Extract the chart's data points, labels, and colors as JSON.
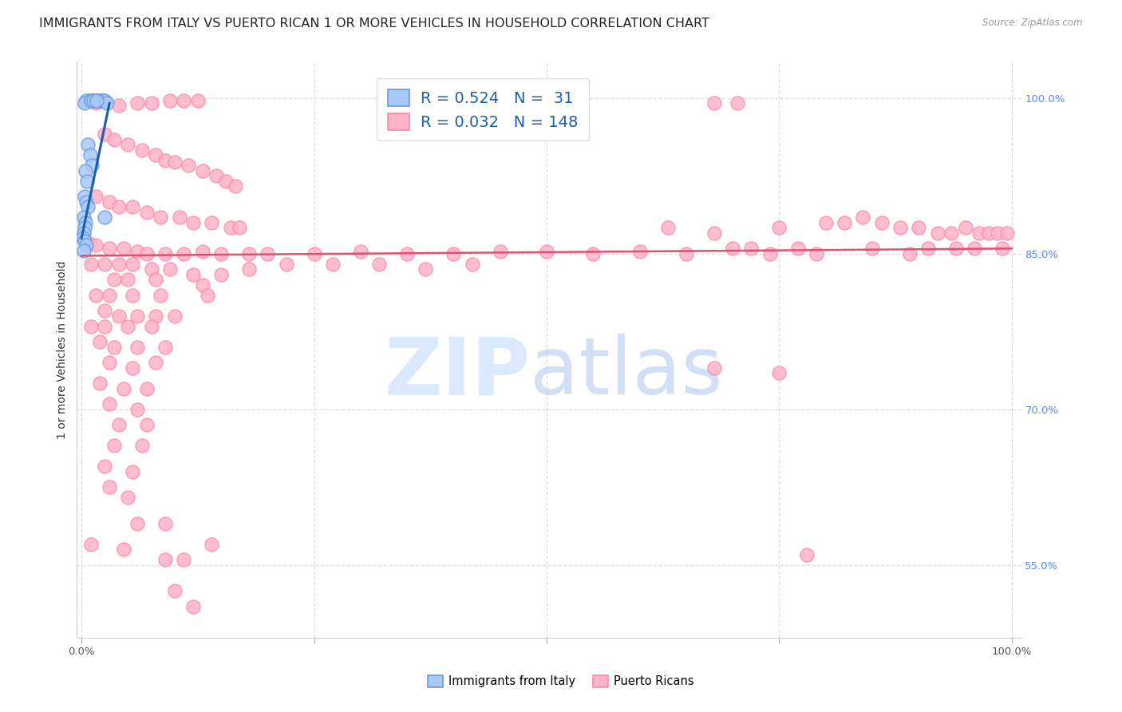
{
  "title": "IMMIGRANTS FROM ITALY VS PUERTO RICAN 1 OR MORE VEHICLES IN HOUSEHOLD CORRELATION CHART",
  "source": "Source: ZipAtlas.com",
  "ylabel": "1 or more Vehicles in Household",
  "watermark_zip": "ZIP",
  "watermark_atlas": "atlas",
  "legend_italy_label": "Immigrants from Italy",
  "legend_pr_label": "Puerto Ricans",
  "italy_R": 0.524,
  "italy_N": 31,
  "pr_R": 0.032,
  "pr_N": 148,
  "right_yticks": [
    55.0,
    70.0,
    85.0,
    100.0
  ],
  "italy_color": "#a8c8f8",
  "pr_color": "#ffb3c8",
  "italy_edge": "#6699dd",
  "pr_edge": "#ff88aa",
  "italy_line_color": "#1a5fa8",
  "pr_line_color": "#e05070",
  "italy_scatter": [
    [
      0.8,
      99.8
    ],
    [
      1.2,
      99.8
    ],
    [
      1.5,
      99.8
    ],
    [
      1.7,
      99.8
    ],
    [
      1.9,
      99.8
    ],
    [
      2.1,
      99.8
    ],
    [
      2.3,
      99.8
    ],
    [
      2.5,
      99.8
    ],
    [
      2.7,
      99.5
    ],
    [
      0.5,
      99.8
    ],
    [
      0.3,
      99.5
    ],
    [
      1.0,
      99.8
    ],
    [
      1.3,
      99.8
    ],
    [
      1.6,
      99.8
    ],
    [
      0.7,
      95.5
    ],
    [
      0.9,
      94.5
    ],
    [
      1.1,
      93.5
    ],
    [
      0.4,
      93.0
    ],
    [
      0.6,
      92.0
    ],
    [
      0.3,
      90.5
    ],
    [
      0.5,
      90.0
    ],
    [
      0.7,
      89.5
    ],
    [
      0.2,
      88.5
    ],
    [
      0.4,
      88.0
    ],
    [
      0.3,
      87.5
    ],
    [
      0.2,
      87.0
    ],
    [
      0.15,
      86.5
    ],
    [
      0.35,
      86.2
    ],
    [
      0.5,
      85.8
    ],
    [
      0.25,
      85.3
    ],
    [
      2.5,
      88.5
    ]
  ],
  "pr_scatter": [
    [
      1.5,
      99.5
    ],
    [
      4.0,
      99.3
    ],
    [
      6.0,
      99.5
    ],
    [
      7.5,
      99.5
    ],
    [
      9.5,
      99.8
    ],
    [
      11.0,
      99.8
    ],
    [
      12.5,
      99.8
    ],
    [
      68.0,
      99.5
    ],
    [
      70.5,
      99.5
    ],
    [
      2.5,
      96.5
    ],
    [
      3.5,
      96.0
    ],
    [
      5.0,
      95.5
    ],
    [
      6.5,
      95.0
    ],
    [
      8.0,
      94.5
    ],
    [
      9.0,
      94.0
    ],
    [
      10.0,
      93.8
    ],
    [
      11.5,
      93.5
    ],
    [
      13.0,
      93.0
    ],
    [
      14.5,
      92.5
    ],
    [
      15.5,
      92.0
    ],
    [
      16.5,
      91.5
    ],
    [
      1.5,
      90.5
    ],
    [
      3.0,
      90.0
    ],
    [
      4.0,
      89.5
    ],
    [
      5.5,
      89.5
    ],
    [
      7.0,
      89.0
    ],
    [
      8.5,
      88.5
    ],
    [
      10.5,
      88.5
    ],
    [
      12.0,
      88.0
    ],
    [
      14.0,
      88.0
    ],
    [
      16.0,
      87.5
    ],
    [
      17.0,
      87.5
    ],
    [
      63.0,
      87.5
    ],
    [
      68.0,
      87.0
    ],
    [
      75.0,
      87.5
    ],
    [
      80.0,
      88.0
    ],
    [
      82.0,
      88.0
    ],
    [
      84.0,
      88.5
    ],
    [
      86.0,
      88.0
    ],
    [
      88.0,
      87.5
    ],
    [
      90.0,
      87.5
    ],
    [
      92.0,
      87.0
    ],
    [
      93.5,
      87.0
    ],
    [
      95.0,
      87.5
    ],
    [
      96.5,
      87.0
    ],
    [
      97.5,
      87.0
    ],
    [
      98.5,
      87.0
    ],
    [
      99.5,
      87.0
    ],
    [
      0.8,
      86.0
    ],
    [
      1.5,
      85.8
    ],
    [
      3.0,
      85.5
    ],
    [
      4.5,
      85.5
    ],
    [
      6.0,
      85.2
    ],
    [
      7.0,
      85.0
    ],
    [
      9.0,
      85.0
    ],
    [
      11.0,
      85.0
    ],
    [
      13.0,
      85.2
    ],
    [
      15.0,
      85.0
    ],
    [
      18.0,
      85.0
    ],
    [
      20.0,
      85.0
    ],
    [
      25.0,
      85.0
    ],
    [
      30.0,
      85.2
    ],
    [
      35.0,
      85.0
    ],
    [
      40.0,
      85.0
    ],
    [
      45.0,
      85.2
    ],
    [
      50.0,
      85.2
    ],
    [
      55.0,
      85.0
    ],
    [
      60.0,
      85.2
    ],
    [
      65.0,
      85.0
    ],
    [
      70.0,
      85.5
    ],
    [
      72.0,
      85.5
    ],
    [
      74.0,
      85.0
    ],
    [
      77.0,
      85.5
    ],
    [
      79.0,
      85.0
    ],
    [
      85.0,
      85.5
    ],
    [
      89.0,
      85.0
    ],
    [
      91.0,
      85.5
    ],
    [
      94.0,
      85.5
    ],
    [
      96.0,
      85.5
    ],
    [
      99.0,
      85.5
    ],
    [
      1.0,
      84.0
    ],
    [
      2.5,
      84.0
    ],
    [
      4.0,
      84.0
    ],
    [
      5.5,
      84.0
    ],
    [
      7.5,
      83.5
    ],
    [
      9.5,
      83.5
    ],
    [
      12.0,
      83.0
    ],
    [
      15.0,
      83.0
    ],
    [
      18.0,
      83.5
    ],
    [
      22.0,
      84.0
    ],
    [
      27.0,
      84.0
    ],
    [
      32.0,
      84.0
    ],
    [
      37.0,
      83.5
    ],
    [
      42.0,
      84.0
    ],
    [
      3.5,
      82.5
    ],
    [
      5.0,
      82.5
    ],
    [
      8.0,
      82.5
    ],
    [
      13.0,
      82.0
    ],
    [
      1.5,
      81.0
    ],
    [
      3.0,
      81.0
    ],
    [
      5.5,
      81.0
    ],
    [
      8.5,
      81.0
    ],
    [
      13.5,
      81.0
    ],
    [
      2.5,
      79.5
    ],
    [
      4.0,
      79.0
    ],
    [
      6.0,
      79.0
    ],
    [
      8.0,
      79.0
    ],
    [
      10.0,
      79.0
    ],
    [
      1.0,
      78.0
    ],
    [
      2.5,
      78.0
    ],
    [
      5.0,
      78.0
    ],
    [
      7.5,
      78.0
    ],
    [
      2.0,
      76.5
    ],
    [
      3.5,
      76.0
    ],
    [
      6.0,
      76.0
    ],
    [
      9.0,
      76.0
    ],
    [
      3.0,
      74.5
    ],
    [
      5.5,
      74.0
    ],
    [
      8.0,
      74.5
    ],
    [
      68.0,
      74.0
    ],
    [
      75.0,
      73.5
    ],
    [
      2.0,
      72.5
    ],
    [
      4.5,
      72.0
    ],
    [
      7.0,
      72.0
    ],
    [
      3.0,
      70.5
    ],
    [
      6.0,
      70.0
    ],
    [
      4.0,
      68.5
    ],
    [
      7.0,
      68.5
    ],
    [
      3.5,
      66.5
    ],
    [
      6.5,
      66.5
    ],
    [
      2.5,
      64.5
    ],
    [
      5.5,
      64.0
    ],
    [
      3.0,
      62.5
    ],
    [
      5.0,
      61.5
    ],
    [
      6.0,
      59.0
    ],
    [
      9.0,
      59.0
    ],
    [
      4.5,
      56.5
    ],
    [
      14.0,
      57.0
    ],
    [
      1.0,
      57.0
    ],
    [
      78.0,
      56.0
    ],
    [
      9.0,
      55.5
    ],
    [
      11.0,
      55.5
    ],
    [
      10.0,
      52.5
    ],
    [
      12.0,
      51.0
    ]
  ],
  "italy_trend_x": [
    0.0,
    3.0
  ],
  "italy_trend_y": [
    86.5,
    99.5
  ],
  "pr_trend_x": [
    0.0,
    100.0
  ],
  "pr_trend_y": [
    84.8,
    85.5
  ],
  "ylim": [
    48.0,
    103.5
  ],
  "xlim": [
    -0.5,
    101.0
  ],
  "xgrid_positions": [
    0,
    25,
    50,
    75,
    100
  ],
  "grid_color": "#dddddd",
  "background_color": "#ffffff",
  "title_fontsize": 11.5,
  "axis_label_fontsize": 10,
  "tick_fontsize": 9.5
}
